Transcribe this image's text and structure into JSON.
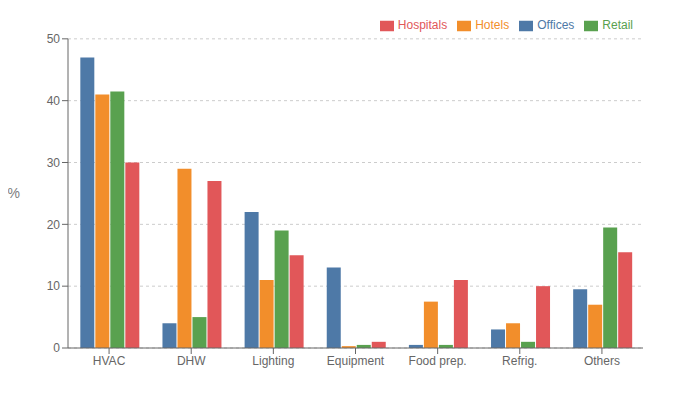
{
  "chart_data": {
    "type": "bar",
    "y_label": "%",
    "categories": [
      "HVAC",
      "DHW",
      "Lighting",
      "Equipment",
      "Food prep.",
      "Refrig.",
      "Others"
    ],
    "series": [
      {
        "name": "Offices",
        "color": "#4e79a7",
        "values": [
          47,
          4,
          22,
          13,
          0.5,
          3,
          9.5
        ]
      },
      {
        "name": "Hotels",
        "color": "#f28e2b",
        "values": [
          41,
          29,
          11,
          0.3,
          7.5,
          4,
          7
        ]
      },
      {
        "name": "Retail",
        "color": "#59a14f",
        "values": [
          41.5,
          5,
          19,
          0.5,
          0.5,
          1,
          19.5
        ]
      },
      {
        "name": "Hospitals",
        "color": "#e15759",
        "values": [
          30,
          27,
          15,
          1,
          11,
          10,
          15.5
        ]
      }
    ],
    "ylim": [
      0,
      50
    ],
    "yticks": [
      0,
      10,
      20,
      30,
      40,
      50
    ],
    "grid": true,
    "legend": "upper right"
  }
}
